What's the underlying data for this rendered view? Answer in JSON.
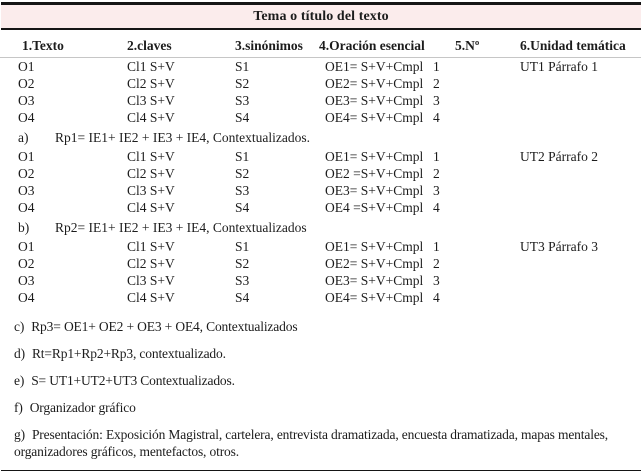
{
  "colors": {
    "band_pink": "#fbecec",
    "border_dark": "#151515",
    "rule_gray": "#c6c6c6"
  },
  "title": "Tema o título del texto",
  "columns": [
    "1.Texto",
    "2.claves",
    "3.sinónimos",
    "4.Oración esencial",
    "5.Nº",
    "6.Unidad temática"
  ],
  "blocks": [
    {
      "rows": [
        {
          "texto": "O1",
          "claves": "Cl1 S+V",
          "sinonimos": "S1",
          "oracion": "OE1= S+V+Cmpl",
          "n": "1",
          "unidad": "UT1 Párrafo 1"
        },
        {
          "texto": "O2",
          "claves": "Cl2 S+V",
          "sinonimos": "S2",
          "oracion": "OE2= S+V+Cmpl",
          "n": "2"
        },
        {
          "texto": "O3",
          "claves": "Cl3 S+V",
          "sinonimos": "S3",
          "oracion": "OE3= S+V+Cmpl",
          "n": "3"
        },
        {
          "texto": "O4",
          "claves": "Cl4 S+V",
          "sinonimos": "S4",
          "oracion": "OE4= S+V+Cmpl",
          "n": "4"
        }
      ],
      "note": {
        "letter": "a)",
        "text": "Rp1= IE1+ IE2 + IE3 + IE4, Contextualizados."
      }
    },
    {
      "rows": [
        {
          "texto": "O1",
          "claves": "Cl1 S+V",
          "sinonimos": "S1",
          "oracion": "OE1= S+V+Cmpl",
          "n": "1",
          "unidad": "UT2 Párrafo 2"
        },
        {
          "texto": "O2",
          "claves": "Cl2 S+V",
          "sinonimos": "S2",
          "oracion": "OE2 =S+V+Cmpl",
          "n": "2"
        },
        {
          "texto": "O3",
          "claves": "Cl3 S+V",
          "sinonimos": "S3",
          "oracion": "OE3= S+V+Cmpl",
          "n": "3"
        },
        {
          "texto": "O4",
          "claves": "Cl4 S+V",
          "sinonimos": "S4",
          "oracion": "OE4 =S+V+Cmpl",
          "n": "4"
        }
      ],
      "note": {
        "letter": "b)",
        "text": "Rp2= IE1+ IE2 + IE3 + IE4, Contextualizados"
      }
    },
    {
      "rows": [
        {
          "texto": "O1",
          "claves": "Cl1 S+V",
          "sinonimos": "S1",
          "oracion": "OE1= S+V+Cmpl",
          "n": "1",
          "unidad": "UT3 Párrafo 3"
        },
        {
          "texto": "O2",
          "claves": "Cl2 S+V",
          "sinonimos": "S2",
          "oracion": "OE2= S+V+Cmpl",
          "n": "2"
        },
        {
          "texto": "O3",
          "claves": "Cl3 S+V",
          "sinonimos": "S3",
          "oracion": "OE3= S+V+Cmpl",
          "n": "3"
        },
        {
          "texto": "O4",
          "claves": "Cl4 S+V",
          "sinonimos": "S4",
          "oracion": "OE4= S+V+Cmpl",
          "n": "4"
        }
      ]
    }
  ],
  "footnotes": [
    {
      "letter": "c)",
      "text": "Rp3= OE1+ OE2 + OE3 + OE4, Contextualizados"
    },
    {
      "letter": "d)",
      "text": "Rt=Rp1+Rp2+Rp3, contextualizado."
    },
    {
      "letter": "e)",
      "text": "S= UT1+UT2+UT3 Contextualizados."
    },
    {
      "letter": "f)",
      "text": "Organizador gráfico"
    },
    {
      "letter": "g)",
      "text": "Presentación: Exposición Magistral, cartelera, entrevista dramatizada, encuesta dramatizada, mapas mentales, organizadores gráficos, mentefactos, otros."
    }
  ]
}
